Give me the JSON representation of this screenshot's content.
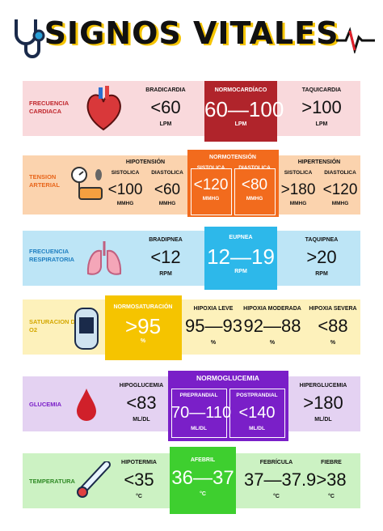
{
  "title": "SIGNOS VITALES",
  "rows": [
    {
      "label": "FRECUENCIA CARDIACA",
      "groups": [
        {
          "heading": "BRADICARDIA",
          "value": "<60",
          "unit": "LPM"
        },
        {
          "heading": "NORMOCARDÍACO",
          "value": "60—100",
          "unit": "LPM"
        },
        {
          "heading": "TAQUICARDIA",
          "value": ">100",
          "unit": "LPM"
        }
      ]
    },
    {
      "label": "TENSION ARTERIAL",
      "groups": [
        {
          "heading": "HIPOTENSIÓN",
          "items": [
            {
              "heading": "SISTOLICA",
              "value": "<100",
              "unit": "MMHG"
            },
            {
              "heading": "DIASTOLICA",
              "value": "<60",
              "unit": "MMHG"
            }
          ]
        },
        {
          "heading": "NORMOTENSIÓN",
          "items": [
            {
              "heading": "SISTOLICA",
              "value": "<120",
              "unit": "MMHG"
            },
            {
              "heading": "DIASTOLICA",
              "value": "<80",
              "unit": "MMHG"
            }
          ]
        },
        {
          "heading": "HIPERTENSIÓN",
          "items": [
            {
              "heading": "SISTOLICA",
              "value": ">180",
              "unit": "MMHG"
            },
            {
              "heading": "DIASTOLICA",
              "value": "<120",
              "unit": "MMHG"
            }
          ]
        }
      ]
    },
    {
      "label": "FRECUENCIA RESPIRATORIA",
      "groups": [
        {
          "heading": "BRADIPNEA",
          "value": "<12",
          "unit": "RPM"
        },
        {
          "heading": "EUPNEA",
          "value": "12—19",
          "unit": "RPM"
        },
        {
          "heading": "TAQUIPNEA",
          "value": ">20",
          "unit": "RPM"
        }
      ]
    },
    {
      "label": "SATURACION DE O2",
      "groups": [
        {
          "heading": "NORMOSATURACIÓN",
          "value": ">95",
          "unit": "%"
        },
        {
          "heading": "HIPOXIA LEVE",
          "value": "95—93",
          "unit": "%"
        },
        {
          "heading": "HIPOXIA MODERADA",
          "value": "92—88",
          "unit": "%"
        },
        {
          "heading": "HIPOXIA SEVERA",
          "value": "<88",
          "unit": "%"
        }
      ]
    },
    {
      "label": "GLUCEMIA",
      "groups": [
        {
          "heading": "HIPOGLUCEMIA",
          "value": "<83",
          "unit": "ML/DL"
        },
        {
          "heading": "NORMOGLUCEMIA",
          "items": [
            {
              "heading": "PREPRANDIAL",
              "value": "70—110",
              "unit": "ML/DL"
            },
            {
              "heading": "POSTPRANDIAL",
              "value": "<140",
              "unit": "ML/DL"
            }
          ]
        },
        {
          "heading": "HIPERGLUCEMIA",
          "value": ">180",
          "unit": "ML/DL"
        }
      ]
    },
    {
      "label": "TEMPERATURA",
      "groups": [
        {
          "heading": "HIPOTERMIA",
          "value": "<35",
          "unit": "°C"
        },
        {
          "heading": "AFEBRIL",
          "value": "36—37",
          "unit": "°C"
        },
        {
          "heading": "FEBRÍCULA",
          "value": "37—37.9",
          "unit": "°C"
        },
        {
          "heading": "FIEBRE",
          "value": ">38",
          "unit": "°C"
        }
      ]
    }
  ]
}
